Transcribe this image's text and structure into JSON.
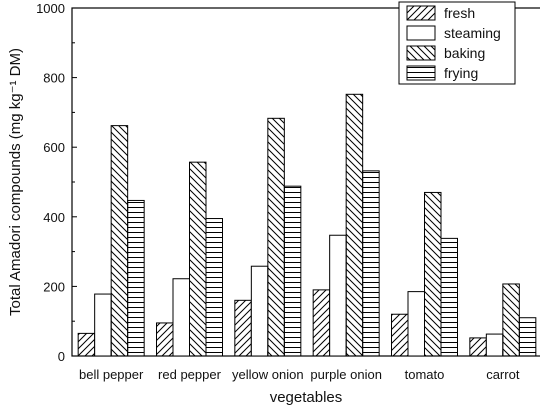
{
  "chart_data": {
    "type": "bar",
    "categories": [
      "bell pepper",
      "red pepper",
      "yellow onion",
      "purple onion",
      "tomato",
      "carrot"
    ],
    "series": [
      {
        "name": "fresh",
        "values": [
          65,
          95,
          160,
          190,
          120,
          52
        ],
        "pattern": "diag-fwd"
      },
      {
        "name": "steaming",
        "values": [
          178,
          222,
          258,
          347,
          185,
          63
        ],
        "pattern": "none"
      },
      {
        "name": "baking",
        "values": [
          662,
          557,
          683,
          752,
          470,
          207
        ],
        "pattern": "diag-back"
      },
      {
        "name": "frying",
        "values": [
          447,
          395,
          488,
          532,
          338,
          110
        ],
        "pattern": "horizontal"
      }
    ],
    "xlabel": "vegetables",
    "ylabel": "Total Amadori compounds (mg kg⁻¹ DM)",
    "ylim": [
      0,
      1000
    ],
    "yticks": [
      0,
      200,
      400,
      600,
      800,
      1000
    ],
    "legend_position": "top-right",
    "grid": false,
    "colors": {
      "stroke": "#000000",
      "fill": "#ffffff"
    }
  }
}
